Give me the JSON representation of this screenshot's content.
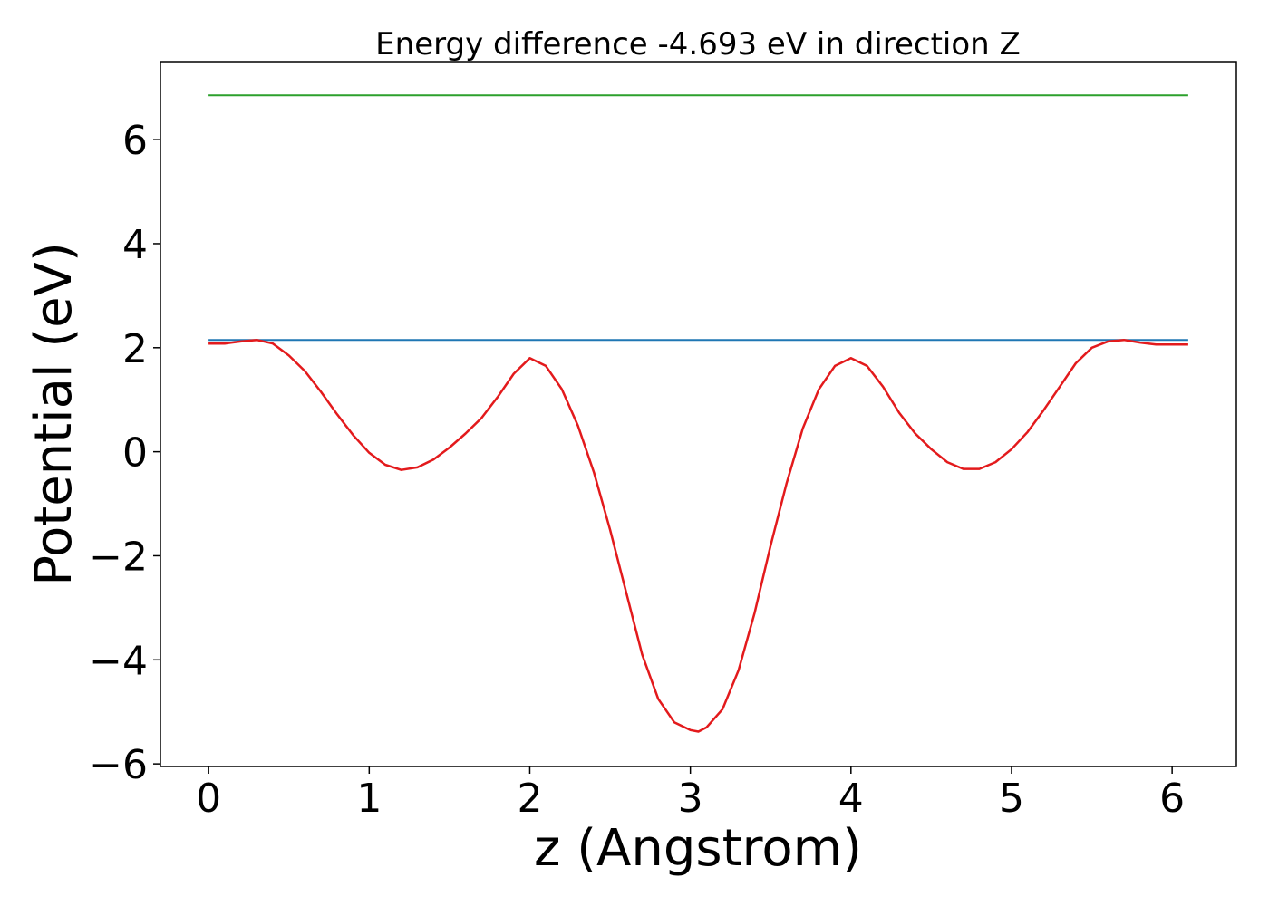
{
  "chart_data": {
    "type": "line",
    "title": "Energy difference -4.693 eV in direction Z",
    "xlabel": "z (Angstrom)",
    "ylabel": "Potential (eV)",
    "xlim": [
      -0.3,
      6.4
    ],
    "ylim": [
      -6.05,
      7.5
    ],
    "xticks": [
      0,
      1,
      2,
      3,
      4,
      5,
      6
    ],
    "yticks": [
      -6,
      -4,
      -2,
      0,
      2,
      4,
      6
    ],
    "xtick_labels": [
      "0",
      "1",
      "2",
      "3",
      "4",
      "5",
      "6"
    ],
    "ytick_labels": [
      "−6",
      "−4",
      "−2",
      "0",
      "2",
      "4",
      "6"
    ],
    "grid": false,
    "series": [
      {
        "color": "#2ca02c",
        "x": [
          0,
          6.1
        ],
        "y": [
          6.85,
          6.85
        ]
      },
      {
        "color": "#1f77b4",
        "x": [
          0,
          6.1
        ],
        "y": [
          2.15,
          2.15
        ]
      },
      {
        "color": "#e31a1c",
        "x": [
          0,
          0.1,
          0.2,
          0.3,
          0.4,
          0.5,
          0.6,
          0.7,
          0.8,
          0.9,
          1.0,
          1.1,
          1.2,
          1.3,
          1.4,
          1.5,
          1.6,
          1.7,
          1.8,
          1.9,
          2.0,
          2.1,
          2.2,
          2.3,
          2.4,
          2.5,
          2.6,
          2.7,
          2.8,
          2.9,
          3.0,
          3.05,
          3.1,
          3.2,
          3.3,
          3.4,
          3.5,
          3.6,
          3.7,
          3.8,
          3.9,
          4.0,
          4.1,
          4.2,
          4.3,
          4.4,
          4.5,
          4.6,
          4.7,
          4.8,
          4.9,
          5.0,
          5.1,
          5.2,
          5.3,
          5.4,
          5.5,
          5.6,
          5.7,
          5.8,
          5.9,
          6.0,
          6.1
        ],
        "y": [
          2.08,
          2.08,
          2.12,
          2.15,
          2.08,
          1.85,
          1.55,
          1.15,
          0.72,
          0.32,
          -0.02,
          -0.25,
          -0.35,
          -0.3,
          -0.15,
          0.08,
          0.35,
          0.65,
          1.05,
          1.5,
          1.8,
          1.65,
          1.2,
          0.5,
          -0.4,
          -1.5,
          -2.7,
          -3.9,
          -4.75,
          -5.2,
          -5.35,
          -5.38,
          -5.3,
          -4.95,
          -4.2,
          -3.1,
          -1.8,
          -0.6,
          0.45,
          1.2,
          1.65,
          1.8,
          1.65,
          1.25,
          0.75,
          0.35,
          0.05,
          -0.2,
          -0.33,
          -0.33,
          -0.2,
          0.05,
          0.38,
          0.8,
          1.25,
          1.7,
          2.0,
          2.12,
          2.15,
          2.1,
          2.06,
          2.06,
          2.06
        ]
      }
    ]
  }
}
